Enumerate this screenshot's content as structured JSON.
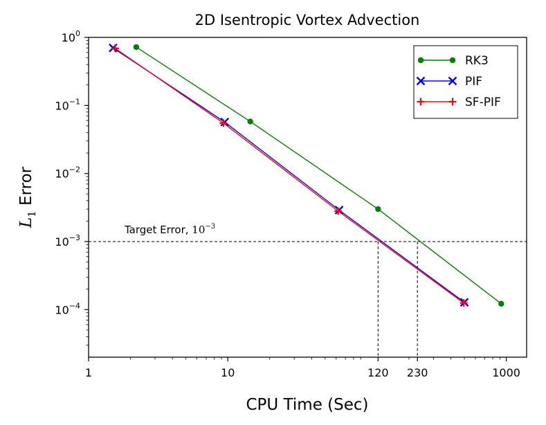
{
  "chart_data": {
    "type": "line",
    "title": "2D Isentropic Vortex Advection",
    "xlabel": "CPU Time (Sec)",
    "ylabel_main": "L",
    "ylabel_sub": "1",
    "ylabel_rest": " Error",
    "xscale": "log",
    "yscale": "log",
    "xlim": [
      1,
      1400
    ],
    "ylim": [
      2e-05,
      1
    ],
    "x_ticks": [
      {
        "value": 1,
        "label": "1"
      },
      {
        "value": 10,
        "label": "10"
      },
      {
        "value": 120,
        "label": "120"
      },
      {
        "value": 230,
        "label": "230"
      },
      {
        "value": 1000,
        "label": "1000"
      }
    ],
    "y_ticks": [
      {
        "value": 1,
        "base": "10",
        "exp": "0"
      },
      {
        "value": 0.1,
        "base": "10",
        "exp": "−1"
      },
      {
        "value": 0.01,
        "base": "10",
        "exp": "−2"
      },
      {
        "value": 0.001,
        "base": "10",
        "exp": "−3"
      },
      {
        "value": 0.0001,
        "base": "10",
        "exp": "−4"
      }
    ],
    "series": [
      {
        "name": "RK3",
        "color": "#008000",
        "marker": "dot",
        "x": [
          2.2,
          14.5,
          120,
          920
        ],
        "y": [
          0.72,
          0.058,
          0.003,
          0.000122
        ]
      },
      {
        "name": "PIF",
        "color": "#0000ff",
        "marker": "x",
        "x": [
          1.5,
          9.5,
          63,
          500
        ],
        "y": [
          0.7,
          0.057,
          0.0029,
          0.000128
        ]
      },
      {
        "name": "SF-PIF",
        "color": "#ff0000",
        "marker": "plus",
        "x": [
          1.55,
          9.3,
          62,
          495
        ],
        "y": [
          0.69,
          0.055,
          0.0028,
          0.000125
        ]
      }
    ],
    "target": {
      "value": 0.001,
      "label_text": "Target Error, ",
      "label_base": "10",
      "label_exp": "−3",
      "x_marks": [
        120,
        230
      ]
    },
    "legend_position": "top-right"
  }
}
